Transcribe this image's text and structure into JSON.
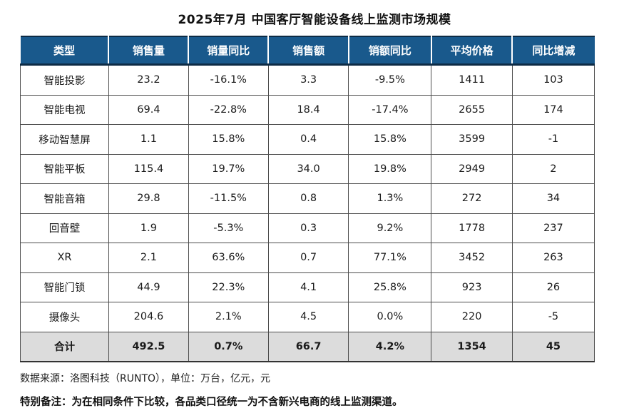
{
  "title": "2025年7月 中国客厅智能设备线上监测市场规模",
  "footer": {
    "source_line": "数据来源：洛图科技（RUNTO），单位：万台，亿元，元",
    "note_line": "特别备注：为在相同条件下比较，各品类口径统一为不含新兴电商的线上监测渠道。"
  },
  "colors": {
    "header_bg": "#19598C",
    "header_text": "#FFFFFF",
    "border_dark": "#0D2B45",
    "positive_red": "#E03C31",
    "negative_green": "#3BB878",
    "total_row_bg": "#DCDCDC"
  },
  "chart_data": {
    "type": "table",
    "title": "2025年7月 中国客厅智能设备线上监测市场规模",
    "columns": [
      "类型",
      "销售量",
      "销量同比",
      "销售额",
      "销额同比",
      "平均价格",
      "同比增减"
    ],
    "units": "万台，亿元，元",
    "rows": [
      {
        "total": false,
        "cells": [
          {
            "v": "智能投影",
            "c": "black"
          },
          {
            "v": "23.2",
            "c": "black"
          },
          {
            "v": "-16.1%",
            "c": "green"
          },
          {
            "v": "3.3",
            "c": "black"
          },
          {
            "v": "-9.5%",
            "c": "green"
          },
          {
            "v": "1411",
            "c": "black"
          },
          {
            "v": "103",
            "c": "red"
          }
        ]
      },
      {
        "total": false,
        "cells": [
          {
            "v": "智能电视",
            "c": "black"
          },
          {
            "v": "69.4",
            "c": "black"
          },
          {
            "v": "-22.8%",
            "c": "green"
          },
          {
            "v": "18.4",
            "c": "black"
          },
          {
            "v": "-17.4%",
            "c": "green"
          },
          {
            "v": "2655",
            "c": "black"
          },
          {
            "v": "174",
            "c": "red"
          }
        ]
      },
      {
        "total": false,
        "cells": [
          {
            "v": "移动智慧屏",
            "c": "black"
          },
          {
            "v": "1.1",
            "c": "black"
          },
          {
            "v": "15.8%",
            "c": "red"
          },
          {
            "v": "0.4",
            "c": "black"
          },
          {
            "v": "15.8%",
            "c": "red"
          },
          {
            "v": "3599",
            "c": "black"
          },
          {
            "v": "-1",
            "c": "green"
          }
        ]
      },
      {
        "total": false,
        "cells": [
          {
            "v": "智能平板",
            "c": "black"
          },
          {
            "v": "115.4",
            "c": "black"
          },
          {
            "v": "19.7%",
            "c": "red"
          },
          {
            "v": "34.0",
            "c": "black"
          },
          {
            "v": "19.8%",
            "c": "red"
          },
          {
            "v": "2949",
            "c": "black"
          },
          {
            "v": "2",
            "c": "red"
          }
        ]
      },
      {
        "total": false,
        "cells": [
          {
            "v": "智能音箱",
            "c": "black"
          },
          {
            "v": "29.8",
            "c": "black"
          },
          {
            "v": "-11.5%",
            "c": "green"
          },
          {
            "v": "0.8",
            "c": "black"
          },
          {
            "v": "1.3%",
            "c": "red"
          },
          {
            "v": "272",
            "c": "black"
          },
          {
            "v": "34",
            "c": "red"
          }
        ]
      },
      {
        "total": false,
        "cells": [
          {
            "v": "回音壁",
            "c": "black"
          },
          {
            "v": "1.9",
            "c": "black"
          },
          {
            "v": "-5.3%",
            "c": "green"
          },
          {
            "v": "0.3",
            "c": "black"
          },
          {
            "v": "9.2%",
            "c": "red"
          },
          {
            "v": "1778",
            "c": "black"
          },
          {
            "v": "237",
            "c": "red"
          }
        ]
      },
      {
        "total": false,
        "cells": [
          {
            "v": "XR",
            "c": "black"
          },
          {
            "v": "2.1",
            "c": "black"
          },
          {
            "v": "63.6%",
            "c": "red"
          },
          {
            "v": "0.7",
            "c": "black"
          },
          {
            "v": "77.1%",
            "c": "red"
          },
          {
            "v": "3452",
            "c": "black"
          },
          {
            "v": "263",
            "c": "red"
          }
        ]
      },
      {
        "total": false,
        "cells": [
          {
            "v": "智能门锁",
            "c": "black"
          },
          {
            "v": "44.9",
            "c": "black"
          },
          {
            "v": "22.3%",
            "c": "red"
          },
          {
            "v": "4.1",
            "c": "black"
          },
          {
            "v": "25.8%",
            "c": "red"
          },
          {
            "v": "923",
            "c": "black"
          },
          {
            "v": "26",
            "c": "red"
          }
        ]
      },
      {
        "total": false,
        "cells": [
          {
            "v": "摄像头",
            "c": "black"
          },
          {
            "v": "204.6",
            "c": "black"
          },
          {
            "v": "2.1%",
            "c": "red"
          },
          {
            "v": "4.5",
            "c": "black"
          },
          {
            "v": "0.0%",
            "c": "green"
          },
          {
            "v": "220",
            "c": "black"
          },
          {
            "v": "-5",
            "c": "green"
          }
        ]
      },
      {
        "total": true,
        "cells": [
          {
            "v": "合计",
            "c": "black"
          },
          {
            "v": "492.5",
            "c": "black"
          },
          {
            "v": "0.7%",
            "c": "red"
          },
          {
            "v": "66.7",
            "c": "black"
          },
          {
            "v": "4.2%",
            "c": "red"
          },
          {
            "v": "1354",
            "c": "black"
          },
          {
            "v": "45",
            "c": "red"
          }
        ]
      }
    ]
  }
}
